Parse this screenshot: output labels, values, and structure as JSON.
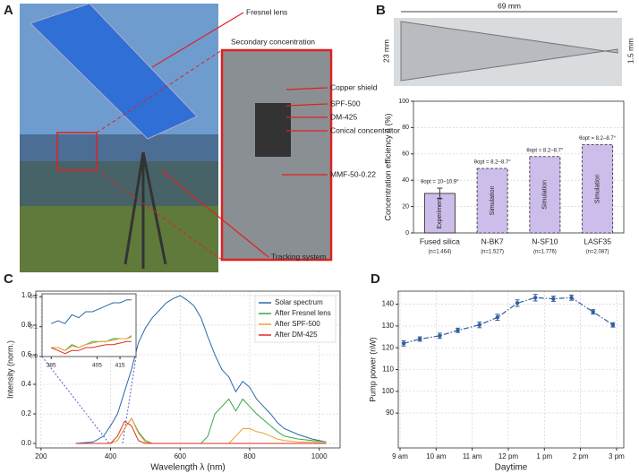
{
  "panels": [
    "A",
    "B",
    "C",
    "D"
  ],
  "photo_labels": [
    "Fresnel lens",
    "Secondary concentration",
    "Copper shield",
    "SPF-500",
    "DM-425",
    "Conical concentrator",
    "MMF-50-0.22",
    "Tracking system"
  ],
  "cone_dimensions": [
    "69 mm",
    "23 mm",
    "1.5 mm"
  ],
  "chart_data": [
    {
      "type": "bar",
      "y_label": "Concentration efficiency η (%)",
      "categories": [
        "Fused silica",
        "N-BK7",
        "N-SF10",
        "LASF35"
      ],
      "category_notes": [
        "(n=1.464)",
        "(n=1.527)",
        "(n=1.776)",
        "(n=2.087)"
      ],
      "values": [
        30,
        49,
        58,
        67
      ],
      "errors": [
        4,
        null,
        null,
        null
      ],
      "bar_texts": [
        "Experiment",
        "Simulation",
        "Simulation",
        "Simulation"
      ],
      "bar_annotations": [
        "θopt = 10–10.9°",
        "θopt = 8.2–8.7°",
        "θopt = 8.2–8.7°",
        "θopt = 8.2–8.7°"
      ],
      "color": "#cdbdea",
      "ylim": [
        0,
        100
      ],
      "yticks": [
        0,
        20,
        40,
        60,
        80,
        100
      ],
      "grid": true
    },
    {
      "type": "line",
      "x_label": "Wavelength λ (nm)",
      "y_label": "Intensity (norm.)",
      "x": [
        300,
        350,
        380,
        400,
        420,
        440,
        460,
        480,
        500,
        520,
        540,
        560,
        580,
        600,
        620,
        640,
        660,
        680,
        700,
        720,
        740,
        760,
        780,
        800,
        820,
        840,
        860,
        880,
        900,
        940,
        980,
        1020
      ],
      "series": [
        {
          "name": "Solar spectrum",
          "color": "#2a68a8",
          "values": [
            0,
            0.01,
            0.05,
            0.12,
            0.2,
            0.35,
            0.5,
            0.68,
            0.78,
            0.85,
            0.9,
            0.95,
            0.98,
            1.0,
            0.97,
            0.93,
            0.85,
            0.72,
            0.6,
            0.5,
            0.45,
            0.35,
            0.42,
            0.38,
            0.3,
            0.25,
            0.2,
            0.14,
            0.1,
            0.06,
            0.03,
            0.01
          ]
        },
        {
          "name": "After Fresnel lens",
          "color": "#3aa845",
          "values": [
            0,
            0,
            0,
            0,
            0.02,
            0.1,
            0.17,
            0.08,
            0.02,
            0,
            0,
            0,
            0,
            0,
            0,
            0,
            0,
            0.05,
            0.2,
            0.25,
            0.3,
            0.22,
            0.3,
            0.25,
            0.2,
            0.16,
            0.12,
            0.08,
            0.05,
            0.03,
            0.02,
            0.01
          ]
        },
        {
          "name": "After SPF-500",
          "color": "#f0a030",
          "values": [
            0,
            0,
            0,
            0,
            0.02,
            0.1,
            0.17,
            0.07,
            0.01,
            0,
            0,
            0,
            0,
            0,
            0,
            0,
            0,
            0,
            0,
            0,
            0,
            0.05,
            0.1,
            0.1,
            0.08,
            0.07,
            0.05,
            0.03,
            0.02,
            0.01,
            0.01,
            0
          ]
        },
        {
          "name": "After DM-425",
          "color": "#d93020",
          "values": [
            0,
            0,
            0,
            0,
            0.05,
            0.15,
            0.12,
            0.02,
            0,
            0,
            0,
            0,
            0,
            0,
            0,
            0,
            0,
            0,
            0,
            0,
            0,
            0,
            0,
            0,
            0,
            0,
            0,
            0,
            0,
            0,
            0,
            0
          ]
        }
      ],
      "xlim": [
        185,
        1060
      ],
      "xticks": [
        200,
        400,
        600,
        800,
        1000
      ],
      "ylim": [
        -0.03,
        1.03
      ],
      "yticks": [
        {
          "value": 0,
          "label": "0.0"
        },
        0.2,
        0.4,
        0.6,
        0.8,
        {
          "value": 1,
          "label": "1.0"
        }
      ],
      "grid": true,
      "legend": "upper right"
    },
    {
      "type": "line",
      "x": [
        385,
        388,
        391,
        394,
        397,
        400,
        403,
        406,
        409,
        412,
        415,
        418,
        420
      ],
      "series": [
        {
          "color": "#2a68a8",
          "values": [
            0.11,
            0.12,
            0.11,
            0.14,
            0.13,
            0.15,
            0.15,
            0.16,
            0.17,
            0.18,
            0.18,
            0.19,
            0.19
          ]
        },
        {
          "color": "#3aa845",
          "values": [
            0.03,
            0.03,
            0.02,
            0.04,
            0.03,
            0.04,
            0.05,
            0.05,
            0.05,
            0.06,
            0.06,
            0.06,
            0.07
          ]
        },
        {
          "color": "#f0a030",
          "values": [
            0.03,
            0.03,
            0.02,
            0.035,
            0.03,
            0.04,
            0.045,
            0.05,
            0.05,
            0.055,
            0.06,
            0.06,
            0.065
          ]
        },
        {
          "color": "#d93020",
          "values": [
            0.03,
            0.02,
            0.01,
            0.02,
            0.02,
            0.03,
            0.03,
            0.035,
            0.04,
            0.04,
            0.045,
            0.05,
            0.05
          ]
        }
      ],
      "xlim": [
        381,
        422
      ],
      "xticks": [
        385,
        405,
        415
      ],
      "ylim": [
        0,
        0.21
      ],
      "yticks": [
        {
          "value": 0,
          "label": "0.0"
        },
        0.1,
        0.2
      ],
      "grid": false
    },
    {
      "type": "line",
      "x_label": "Daytime",
      "y_label": "Pump power (nW)",
      "x": [
        9.1,
        9.55,
        10.1,
        10.6,
        11.2,
        11.7,
        12.25,
        12.75,
        13.25,
        13.75,
        14.35,
        14.9
      ],
      "series": [
        {
          "color": "#2f5f9e",
          "values": [
            122,
            124,
            125.5,
            128,
            130.5,
            134,
            140.5,
            143,
            142.5,
            143,
            136.5,
            130.5
          ],
          "errors": [
            1.2,
            1,
            1.2,
            1,
            1.3,
            1.4,
            1.5,
            1.5,
            1.2,
            1.2,
            1,
            1
          ]
        }
      ],
      "xlim": [
        8.95,
        15.2
      ],
      "xticks": [
        {
          "value": 9,
          "label": "9 am"
        },
        {
          "value": 10,
          "label": "10 am"
        },
        {
          "value": 11,
          "label": "11 am"
        },
        {
          "value": 12,
          "label": "12 pm"
        },
        {
          "value": 13,
          "label": "1 pm"
        },
        {
          "value": 14,
          "label": "2 pm"
        },
        {
          "value": 15,
          "label": "3 pm"
        }
      ],
      "ylim": [
        74,
        146
      ],
      "yticks": [
        90,
        100,
        110,
        120,
        130,
        140
      ],
      "grid": true
    }
  ]
}
